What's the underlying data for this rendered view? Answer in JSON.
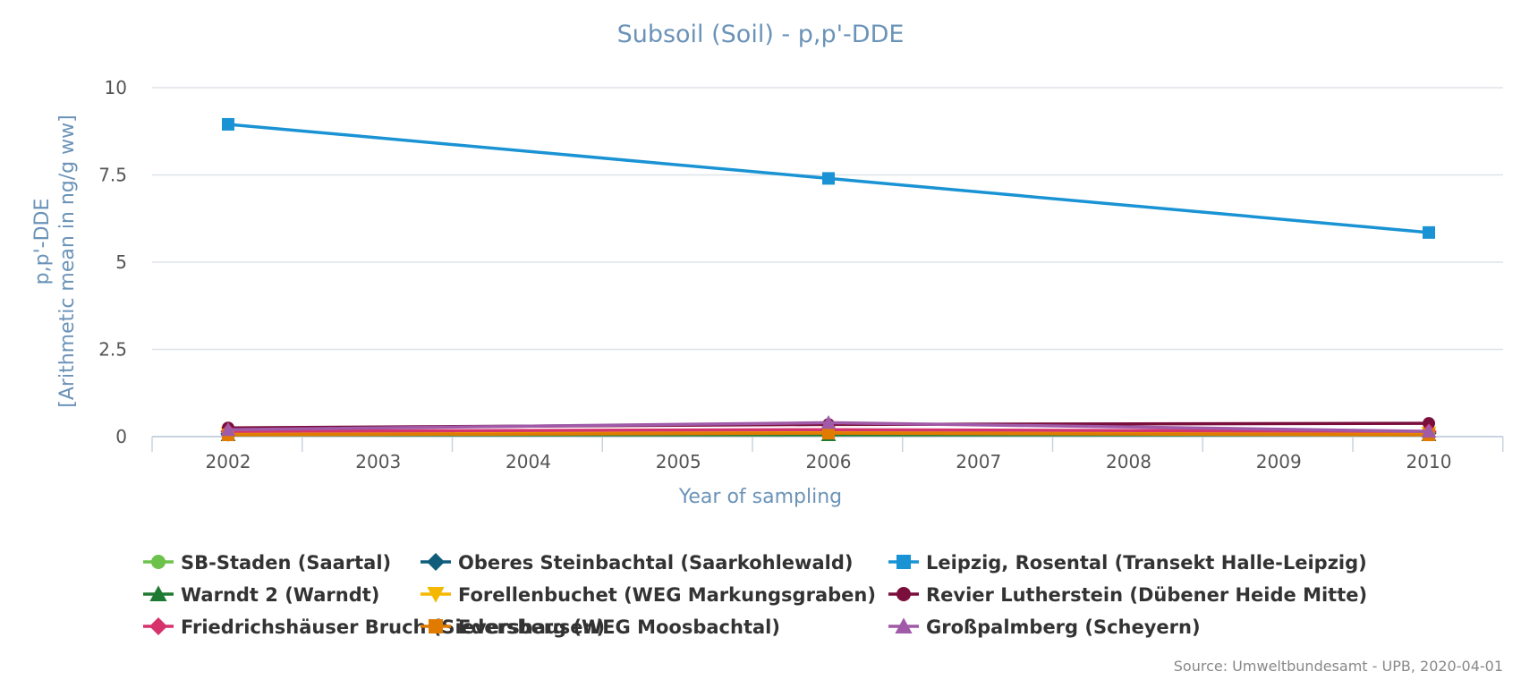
{
  "chart_data": {
    "type": "line",
    "title": "Subsoil (Soil) - p,p'-DDE",
    "xlabel": "Year of sampling",
    "ylabel_line1": "p,p'-DDE",
    "ylabel_line2": "[Arithmetic mean in ng/g ww]",
    "x_ticks": [
      "2002",
      "2003",
      "2004",
      "2005",
      "2006",
      "2007",
      "2008",
      "2009",
      "2010"
    ],
    "xlim": [
      2002,
      2010
    ],
    "ylim": [
      0,
      10
    ],
    "y_ticks": [
      "0",
      "2.5",
      "5",
      "7.5",
      "10"
    ],
    "grid": true,
    "legend_position": "bottom",
    "series": [
      {
        "name": "SB-Staden (Saartal)",
        "color": "#6cc24a",
        "marker": "circle",
        "x": [
          2002,
          2006,
          2010
        ],
        "y": [
          0.1,
          0.1,
          0.1
        ]
      },
      {
        "name": "Oberes Steinbachtal (Saarkohlewald)",
        "color": "#0f5d7a",
        "marker": "diamond",
        "x": [
          2002,
          2006,
          2010
        ],
        "y": [
          0.08,
          0.1,
          0.1
        ]
      },
      {
        "name": "Leipzig, Rosental (Transekt Halle-Leipzig)",
        "color": "#1a93d4",
        "marker": "square",
        "x": [
          2002,
          2006,
          2010
        ],
        "y": [
          8.95,
          7.4,
          5.85
        ]
      },
      {
        "name": "Warndt 2 (Warndt)",
        "color": "#1e7a32",
        "marker": "triangle",
        "x": [
          2002,
          2006,
          2010
        ],
        "y": [
          0.05,
          0.05,
          0.05
        ]
      },
      {
        "name": "Forellenbuchet (WEG Markungsgraben)",
        "color": "#f5b800",
        "marker": "triangle-down",
        "x": [
          2002,
          2006,
          2010
        ],
        "y": [
          0.1,
          0.15,
          0.1
        ]
      },
      {
        "name": "Revier Lutherstein (Dübener Heide Mitte)",
        "color": "#7a0f3c",
        "marker": "circle",
        "x": [
          2002,
          2006,
          2010
        ],
        "y": [
          0.25,
          0.35,
          0.38
        ]
      },
      {
        "name": "Friedrichshäuser Bruch (Sievershausen)",
        "color": "#d6336c",
        "marker": "diamond",
        "x": [
          2002,
          2006,
          2010
        ],
        "y": [
          0.15,
          0.2,
          0.15
        ]
      },
      {
        "name": "Edersberg (WEG Moosbachtal)",
        "color": "#e07b00",
        "marker": "square",
        "x": [
          2002,
          2006,
          2010
        ],
        "y": [
          0.05,
          0.1,
          0.05
        ]
      },
      {
        "name": "Großpalmberg (Scheyern)",
        "color": "#a05aa8",
        "marker": "triangle",
        "x": [
          2002,
          2006,
          2010
        ],
        "y": [
          0.2,
          0.4,
          0.15
        ]
      }
    ]
  },
  "source_text": "Source: Umweltbundesamt - UPB, 2020-04-01"
}
